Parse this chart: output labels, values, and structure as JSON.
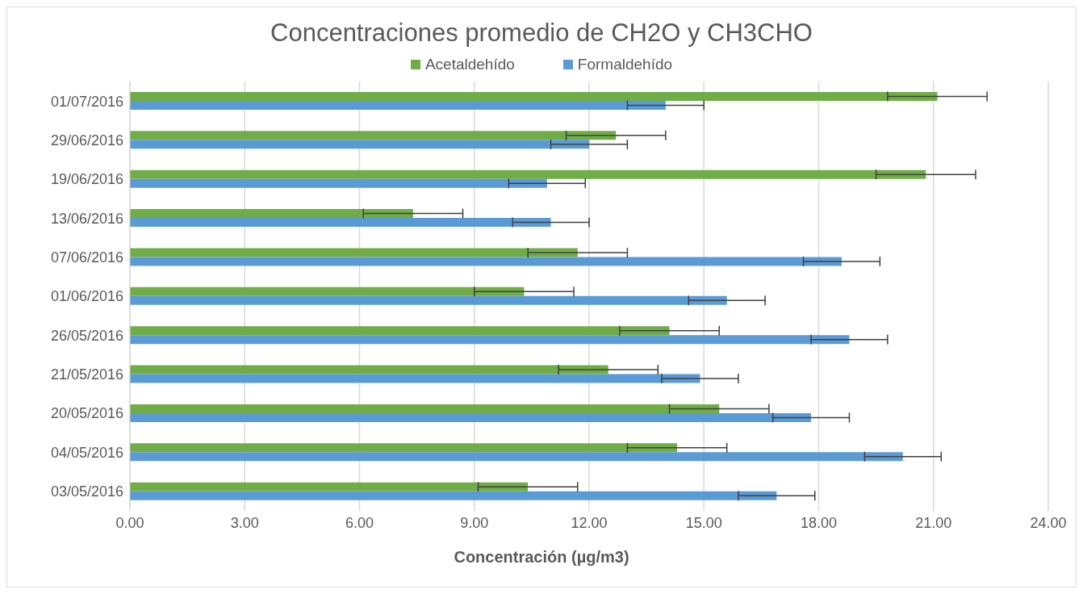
{
  "chart_data": {
    "type": "bar",
    "orientation": "horizontal",
    "title": "Concentraciones promedio de CH2O y CH3CHO",
    "xlabel": "Concentración (µg/m3)",
    "categories": [
      "01/07/2016",
      "29/06/2016",
      "19/06/2016",
      "13/06/2016",
      "07/06/2016",
      "01/06/2016",
      "26/05/2016",
      "21/05/2016",
      "20/05/2016",
      "04/05/2016",
      "03/05/2016"
    ],
    "series": [
      {
        "name": "Acetaldehído",
        "color": "#70ad47",
        "values": [
          21.1,
          12.7,
          20.8,
          7.4,
          11.7,
          10.3,
          14.1,
          12.5,
          15.4,
          14.3,
          10.4
        ],
        "errors": [
          1.3,
          1.3,
          1.3,
          1.3,
          1.3,
          1.3,
          1.3,
          1.3,
          1.3,
          1.3,
          1.3
        ]
      },
      {
        "name": "Formaldehído",
        "color": "#5b9bd5",
        "values": [
          14.0,
          12.0,
          10.9,
          11.0,
          18.6,
          15.6,
          18.8,
          14.9,
          17.8,
          20.2,
          16.9
        ],
        "errors": [
          1.0,
          1.0,
          1.0,
          1.0,
          1.0,
          1.0,
          1.0,
          1.0,
          1.0,
          1.0,
          1.0
        ]
      }
    ],
    "xlim": [
      0,
      24
    ],
    "xticks": [
      {
        "value": 0,
        "label": "0.00"
      },
      {
        "value": 3,
        "label": "3.00"
      },
      {
        "value": 6,
        "label": "6.00"
      },
      {
        "value": 9,
        "label": "9.00"
      },
      {
        "value": 12,
        "label": "12.00"
      },
      {
        "value": 15,
        "label": "15.00"
      },
      {
        "value": 18,
        "label": "18.00"
      },
      {
        "value": 21,
        "label": "21.00"
      },
      {
        "value": 24,
        "label": "24.00"
      }
    ],
    "grid": "x",
    "legend": "top"
  }
}
